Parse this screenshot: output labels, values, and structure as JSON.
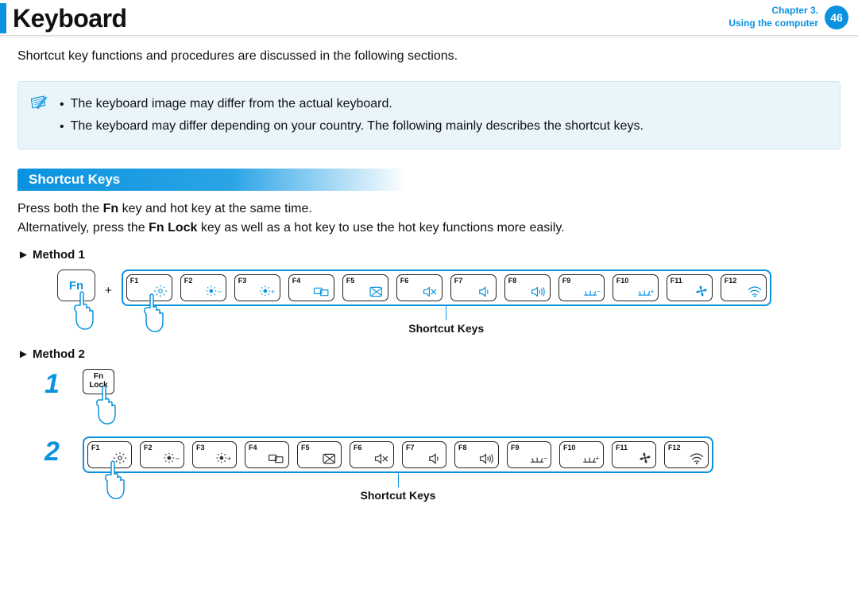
{
  "header": {
    "title": "Keyboard",
    "chapter_label": "Chapter 3.",
    "chapter_sub": "Using the computer",
    "page_number": "46"
  },
  "intro": "Shortcut key functions and procedures are discussed in the following sections.",
  "note": {
    "bullets": [
      "The keyboard image may differ from the actual keyboard.",
      "The keyboard may differ depending on your country. The following mainly describes the shortcut keys."
    ]
  },
  "section_title": "Shortcut Keys",
  "press_text_pre": "Press both the ",
  "press_text_bold": "Fn",
  "press_text_post": " key and hot key at the same time.",
  "alt_text_pre": "Alternatively, press the ",
  "alt_text_bold": "Fn Lock",
  "alt_text_post": " key as well as a hot key to use the hot key functions more easily.",
  "method1_label": "► Method 1",
  "method2_label": "► Method 2",
  "fn_label": "Fn",
  "plus_label": "+",
  "fnlock_line1": "Fn",
  "fnlock_line2": "Lock",
  "step1": "1",
  "step2": "2",
  "caption": "Shortcut Keys",
  "fkeys": [
    {
      "label": "F1",
      "icon": "settings"
    },
    {
      "label": "F2",
      "icon": "bright-down"
    },
    {
      "label": "F3",
      "icon": "bright-up"
    },
    {
      "label": "F4",
      "icon": "display-switch"
    },
    {
      "label": "F5",
      "icon": "touchpad-off"
    },
    {
      "label": "F6",
      "icon": "mute"
    },
    {
      "label": "F7",
      "icon": "vol-down"
    },
    {
      "label": "F8",
      "icon": "vol-up"
    },
    {
      "label": "F9",
      "icon": "kbd-light-down"
    },
    {
      "label": "F10",
      "icon": "kbd-light-up"
    },
    {
      "label": "F11",
      "icon": "fan"
    },
    {
      "label": "F12",
      "icon": "wifi"
    }
  ],
  "colors": {
    "accent": "#0a92df",
    "note_bg": "#e9f5fb",
    "note_border": "#cfe6f2",
    "text": "#111111"
  }
}
